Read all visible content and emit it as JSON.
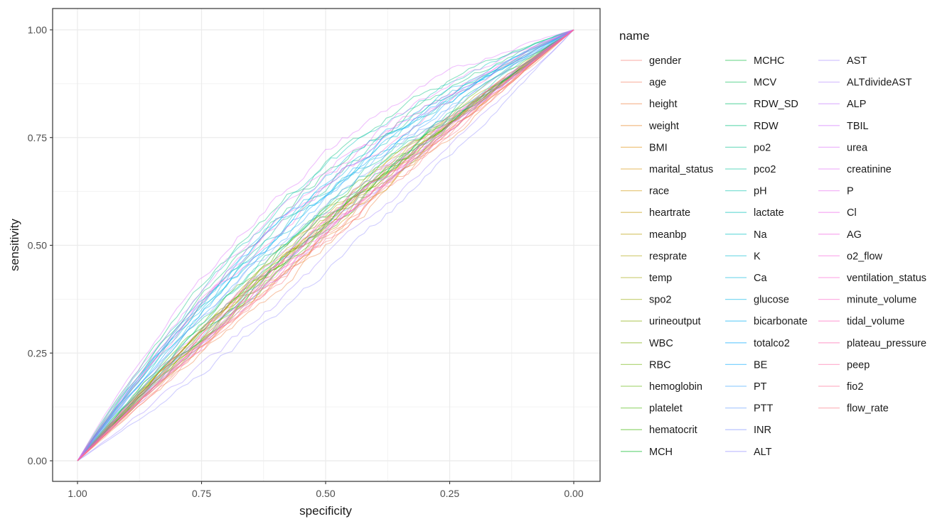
{
  "chart_data": {
    "type": "line",
    "title": "",
    "xlabel": "specificity",
    "ylabel": "sensitivity",
    "xlim": [
      1.0,
      0.0
    ],
    "ylim": [
      0.0,
      1.0
    ],
    "x_reversed": true,
    "x_ticks": [
      "1.00",
      "0.75",
      "0.50",
      "0.25",
      "0.00"
    ],
    "y_ticks": [
      "0.00",
      "0.25",
      "0.50",
      "0.75",
      "1.00"
    ],
    "grid": true,
    "legend_title": "name",
    "legend_position": "right",
    "series": [
      {
        "name": "gender",
        "color": "#F8766D",
        "curve": 0.01
      },
      {
        "name": "age",
        "color": "#F47A5B",
        "curve": 0.02
      },
      {
        "name": "height",
        "color": "#EF7F3F",
        "curve": 0.0
      },
      {
        "name": "weight",
        "color": "#E88526",
        "curve": 0.02
      },
      {
        "name": "BMI",
        "color": "#E08B00",
        "curve": 0.04
      },
      {
        "name": "marital_status",
        "color": "#D89000",
        "curve": 0.05
      },
      {
        "name": "race",
        "color": "#CF9400",
        "curve": 0.02
      },
      {
        "name": "heartrate",
        "color": "#C49A00",
        "curve": 0.06
      },
      {
        "name": "meanbp",
        "color": "#B99E00",
        "curve": 0.05
      },
      {
        "name": "resprate",
        "color": "#ADA200",
        "curve": 0.06
      },
      {
        "name": "temp",
        "color": "#A3A500",
        "curve": 0.04
      },
      {
        "name": "spo2",
        "color": "#96A900",
        "curve": 0.05
      },
      {
        "name": "urineoutput",
        "color": "#86AC00",
        "curve": 0.04
      },
      {
        "name": "WBC",
        "color": "#7AAE00",
        "curve": 0.03
      },
      {
        "name": "RBC",
        "color": "#6BB100",
        "curve": 0.04
      },
      {
        "name": "hemoglobin",
        "color": "#5BB300",
        "curve": 0.05
      },
      {
        "name": "platelet",
        "color": "#44B600",
        "curve": 0.03
      },
      {
        "name": "hematocrit",
        "color": "#39B600",
        "curve": 0.07
      },
      {
        "name": "MCH",
        "color": "#00B81F",
        "curve": 0.04
      },
      {
        "name": "MCHC",
        "color": "#00BA38",
        "curve": 0.05
      },
      {
        "name": "MCV",
        "color": "#00BC51",
        "curve": 0.06
      },
      {
        "name": "RDW_SD",
        "color": "#00BE6C",
        "curve": 0.14
      },
      {
        "name": "RDW",
        "color": "#00BF7D",
        "curve": 0.16
      },
      {
        "name": "po2",
        "color": "#00C08B",
        "curve": 0.12
      },
      {
        "name": "pco2",
        "color": "#00C19A",
        "curve": 0.08
      },
      {
        "name": "pH",
        "color": "#00C1A9",
        "curve": 0.07
      },
      {
        "name": "lactate",
        "color": "#00C0B8",
        "curve": 0.15
      },
      {
        "name": "Na",
        "color": "#00BFC4",
        "curve": 0.11
      },
      {
        "name": "K",
        "color": "#00BCD0",
        "curve": 0.1
      },
      {
        "name": "Ca",
        "color": "#00B8DC",
        "curve": 0.12
      },
      {
        "name": "glucose",
        "color": "#00B4E7",
        "curve": 0.13
      },
      {
        "name": "bicarbonate",
        "color": "#00B0F6",
        "curve": 0.11
      },
      {
        "name": "totalco2",
        "color": "#00A9FF",
        "curve": 0.12
      },
      {
        "name": "BE",
        "color": "#00A5FF",
        "curve": 0.1
      },
      {
        "name": "PT",
        "color": "#35A2FF",
        "curve": 0.09
      },
      {
        "name": "PTT",
        "color": "#619CFF",
        "curve": 0.04
      },
      {
        "name": "INR",
        "color": "#7F96FF",
        "curve": 0.08
      },
      {
        "name": "ALT",
        "color": "#9590FF",
        "curve": -0.05
      },
      {
        "name": "AST",
        "color": "#A58AFF",
        "curve": -0.03
      },
      {
        "name": "ALTdivideAST",
        "color": "#B385FF",
        "curve": 0.03
      },
      {
        "name": "ALP",
        "color": "#C77CFF",
        "curve": 0.02
      },
      {
        "name": "TBIL",
        "color": "#D376FF",
        "curve": 0.06
      },
      {
        "name": "urea",
        "color": "#DC71FA",
        "curve": 0.18
      },
      {
        "name": "creatinine",
        "color": "#E36EF6",
        "curve": 0.15
      },
      {
        "name": "P",
        "color": "#EA6AF1",
        "curve": 0.12
      },
      {
        "name": "Cl",
        "color": "#EF67EB",
        "curve": 0.05
      },
      {
        "name": "AG",
        "color": "#F564E3",
        "curve": 0.13
      },
      {
        "name": "o2_flow",
        "color": "#F962DC",
        "curve": 0.03
      },
      {
        "name": "ventilation_status",
        "color": "#FC61D3",
        "curve": 0.11
      },
      {
        "name": "minute_volume",
        "color": "#FE61CA",
        "curve": 0.04
      },
      {
        "name": "tidal_volume",
        "color": "#FF62BC",
        "curve": 0.02
      },
      {
        "name": "plateau_pressure",
        "color": "#FF65AE",
        "curve": 0.05
      },
      {
        "name": "peep",
        "color": "#FF67A4",
        "curve": 0.03
      },
      {
        "name": "fio2",
        "color": "#FF6C91",
        "curve": 0.02
      },
      {
        "name": "flow_rate",
        "color": "#FC717F",
        "curve": 0.01
      }
    ]
  }
}
